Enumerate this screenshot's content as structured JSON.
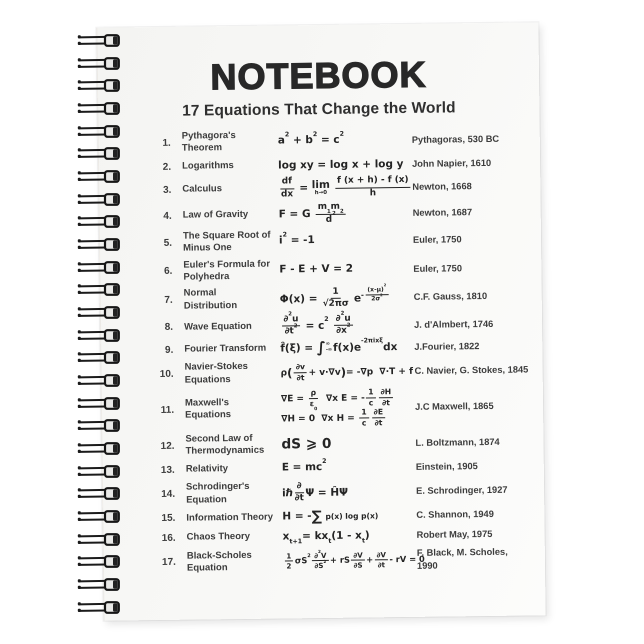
{
  "notebook": {
    "title": "NOTEBOOK",
    "subtitle": "17 Equations That Change the World",
    "spiral_count": 26,
    "colors": {
      "page_background": "#f7f7f5",
      "title_text": "#282828",
      "body_text": "#3c3c3c",
      "formula_text": "#242424",
      "spiral_wire": "#1b1b1b",
      "backdrop": "#ffffff"
    }
  },
  "equations": [
    {
      "number": "1.",
      "name": "Pythagora's Theorem",
      "formula_text": "a² + b² = c²",
      "formula_html": "a<sup>2</sup> + b<sup>2</sup> = c<sup>2</sup>",
      "attribution": "Pythagoras, 530 BC"
    },
    {
      "number": "2.",
      "name": "Logarithms",
      "formula_text": "log xy = log x + log y",
      "formula_html": "log xy = log x + log y",
      "attribution": "John Napier, 1610"
    },
    {
      "number": "3.",
      "name": "Calculus",
      "formula_text": "df/dx = lim(h→0) (f(x + h) - f(x)) / h",
      "formula_html": "<span class=\"fr\"><span class=\"nu\">df</span><span class=\"de\">dx</span></span> = <span class=\"lim\"><span>lim</span><span class=\"ll\">h→0</span></span> <span class=\"fr\"><span class=\"nu\">f (x + h) - f (x)</span><span class=\"de\">h</span></span>",
      "attribution": "Newton, 1668"
    },
    {
      "number": "4.",
      "name": "Law of Gravity",
      "formula_text": "F = G m₁m₂/d²",
      "formula_html": "F = G <span class=\"fr\"><span class=\"nu\">m<sub>1</sub>m<sub>2</sub></span><span class=\"de\">d<sup>2</sup></span></span>",
      "attribution": "Newton, 1687"
    },
    {
      "number": "5.",
      "name": "The Square Root of Minus One",
      "formula_text": "i² = -1",
      "formula_html": "i<sup>2</sup> = -1",
      "attribution": "Euler, 1750"
    },
    {
      "number": "6.",
      "name": "Euler's Formula for Polyhedra",
      "formula_text": "F - E + V = 2",
      "formula_html": "F - E + V = 2",
      "attribution": "Euler, 1750"
    },
    {
      "number": "7.",
      "name": "Normal Distribution",
      "formula_text": "Φ(x) = 1/√2πσ e^(-(x-μ)²/2σ²)",
      "formula_html": "Φ(x) = <span class=\"fr\"><span class=\"nu\">1</span><span class=\"de\">√2πσ</span></span> e<span class=\"exp\">-<span class=\"fr\"><span class=\"nu\">(x-μ)<sup>2</sup></span><span class=\"de\">2σ<sup>2</sup></span></span></span>",
      "attribution": "C.F. Gauss, 1810"
    },
    {
      "number": "8.",
      "name": "Wave Equation",
      "formula_text": "∂²u/∂t² = c² ∂²u/∂x²",
      "formula_html": "<span class=\"fr\"><span class=\"nu\">∂<sup>2</sup>u</span><span class=\"de\">∂t<sup>2</sup></span></span> = c<sup>2</sup> <span class=\"fr\"><span class=\"nu\">∂<sup>2</sup>u</span><span class=\"de\">∂x<sup>2</sup></span></span>",
      "attribution": "J. d'Almbert, 1746"
    },
    {
      "number": "9.",
      "name": "Fourier Transform",
      "formula_text": "f̂(ξ) = ∫ f(x)e^(-2πixξ) dx",
      "formula_html": "f̂(ξ) = <span class=\"int\">∫</span><span class=\"ilim\"><span>∞</span><span>-∞</span></span>f(x)e<sup>-2πixξ</sup>dx",
      "attribution": "J.Fourier, 1822"
    },
    {
      "number": "10.",
      "name": "Navier-Stokes Equations",
      "formula_text": "ρ(∂v/∂t + v·∇v) = -∇p  ∇·T + f",
      "formula_html": "<span class=\"s9\">ρ<span class=\"big\">(</span><span class=\"fr\"><span class=\"nu\">∂v</span><span class=\"de\">∂t</span></span>+ v·∇v<span class=\"big\">)</span>= -∇p&nbsp; ∇·T + f</span>",
      "attribution": "C. Navier, G. Stokes, 1845"
    },
    {
      "number": "11.",
      "name": "Maxwell's Equations",
      "formula_text": "∇E = ρ/ε₀  ∇x E = -1/c ∂H/∂t ; ∇H = 0  ∇x H = 1/c ∂E/∂t",
      "formula_html": "<span class=\"s9\">∇E = <span class=\"fr\"><span class=\"nu\">ρ</span><span class=\"de\">ε<sub>0</sub></span></span>&nbsp; ∇x E = -<span class=\"fr\"><span class=\"nu\">1</span><span class=\"de\">c</span></span><span class=\"fr\"><span class=\"nu\">∂H</span><span class=\"de\">∂t</span></span><br>∇H = 0&nbsp; ∇x H = <span class=\"fr\"><span class=\"nu\">1</span><span class=\"de\">c</span></span><span class=\"fr\"><span class=\"nu\">∂E</span><span class=\"de\">∂t</span></span></span>",
      "attribution": "J.C Maxwell, 1865"
    },
    {
      "number": "12.",
      "name": "Second Law of Thermodynamics",
      "formula_text": "dS ≥ 0",
      "formula_html": "<span class=\"lg\">dS ⩾ 0</span>",
      "attribution": "L. Boltzmann, 1874"
    },
    {
      "number": "13.",
      "name": "Relativity",
      "formula_text": "E = mc²",
      "formula_html": "E = mc<sup>2</sup>",
      "attribution": "Einstein, 1905"
    },
    {
      "number": "14.",
      "name": "Schrodinger's Equation",
      "formula_text": "iℏ ∂/∂t Ψ = ĤΨ",
      "formula_html": "iℏ<span class=\"fr\"><span class=\"nu\">∂</span><span class=\"de\">∂t</span></span>Ψ = ĤΨ",
      "attribution": "E. Schrodinger, 1927"
    },
    {
      "number": "15.",
      "name": "Information Theory",
      "formula_text": "H = -∑ p(x) log p(x)",
      "formula_html": "H = -<span class=\"sum\">∑</span> <span class=\"smtx\">p(x) log p(x)</span>",
      "attribution": "C. Shannon, 1949"
    },
    {
      "number": "16.",
      "name": "Chaos Theory",
      "formula_text": "xₜ₊₁ = kxₜ(1 - xₜ)",
      "formula_html": "x<sub>t+1</sub>= kx<sub>t</sub>(1 - x<sub>t</sub>)",
      "attribution": "Robert May, 1975"
    },
    {
      "number": "17.",
      "name": "Black-Scholes Equation",
      "formula_text": "½σS² ∂²V/∂S² + rS ∂V/∂S + ∂V/∂t - rV = 0",
      "formula_html": "<span class=\"s85\"><span class=\"fr\"><span class=\"nu\">1</span><span class=\"de\">2</span></span>σS<sup>2</sup><span class=\"fr\"><span class=\"nu\">∂<sup>2</sup>V</span><span class=\"de\">∂S<sup>2</sup></span></span>+ rS<span class=\"fr\"><span class=\"nu\">∂V</span><span class=\"de\">∂S</span></span>+<span class=\"fr\"><span class=\"nu\">∂V</span><span class=\"de\">∂t</span></span>- rV = 0</span>",
      "attribution": "F. Black, M. Scholes, 1990"
    }
  ]
}
